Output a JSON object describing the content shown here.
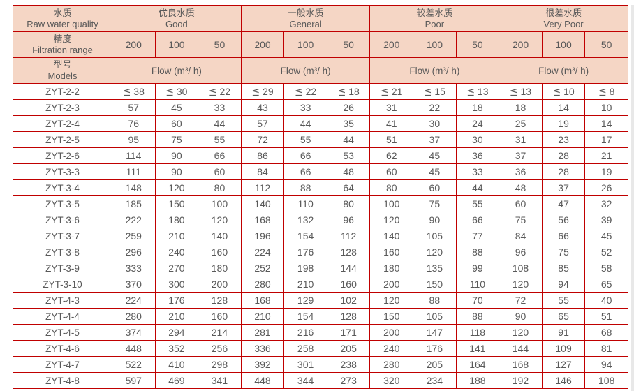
{
  "colors": {
    "border_red": "#c00000",
    "header_fill": "#f5d6c5",
    "text_gray": "#595959",
    "scrollbar_gray": "#e8e8e8"
  },
  "header": {
    "quality": {
      "zh": "水质",
      "en": "Raw water quality"
    },
    "groups": [
      {
        "zh": "优良水质",
        "en": "Good"
      },
      {
        "zh": "一般水质",
        "en": "General"
      },
      {
        "zh": "较差水质",
        "en": "Poor"
      },
      {
        "zh": "很差水质",
        "en": "Very Poor"
      }
    ],
    "filtration": {
      "zh": "精度",
      "en": "Filtration range"
    },
    "filtration_values": [
      "200",
      "100",
      "50",
      "200",
      "100",
      "50",
      "200",
      "100",
      "50",
      "200",
      "100",
      "50"
    ],
    "models": {
      "zh": "型号",
      "en": "Models"
    },
    "flow_label": "Flow (m³/ h)"
  },
  "table": {
    "rows": [
      {
        "model": "ZYT-2-2",
        "values": [
          "≦ 38",
          "≦ 30",
          "≦ 22",
          "≦ 29",
          "≦ 22",
          "≦ 18",
          "≦ 21",
          "≦ 15",
          "≦ 13",
          "≦ 13",
          "≦ 10",
          "≦ 8"
        ]
      },
      {
        "model": "ZYT-2-3",
        "values": [
          "57",
          "45",
          "33",
          "43",
          "33",
          "26",
          "31",
          "22",
          "18",
          "18",
          "14",
          "10"
        ]
      },
      {
        "model": "ZYT-2-4",
        "values": [
          "76",
          "60",
          "44",
          "57",
          "44",
          "35",
          "41",
          "30",
          "24",
          "25",
          "19",
          "14"
        ]
      },
      {
        "model": "ZYT-2-5",
        "values": [
          "95",
          "75",
          "55",
          "72",
          "55",
          "44",
          "51",
          "37",
          "30",
          "31",
          "23",
          "17"
        ]
      },
      {
        "model": "ZYT-2-6",
        "values": [
          "114",
          "90",
          "66",
          "86",
          "66",
          "53",
          "62",
          "45",
          "36",
          "37",
          "28",
          "21"
        ]
      },
      {
        "model": "ZYT-3-3",
        "values": [
          "111",
          "90",
          "60",
          "84",
          "66",
          "48",
          "60",
          "45",
          "33",
          "36",
          "28",
          "19"
        ]
      },
      {
        "model": "ZYT-3-4",
        "values": [
          "148",
          "120",
          "80",
          "112",
          "88",
          "64",
          "80",
          "60",
          "44",
          "48",
          "37",
          "26"
        ]
      },
      {
        "model": "ZYT-3-5",
        "values": [
          "185",
          "150",
          "100",
          "140",
          "110",
          "80",
          "100",
          "75",
          "55",
          "60",
          "47",
          "32"
        ]
      },
      {
        "model": "ZYT-3-6",
        "values": [
          "222",
          "180",
          "120",
          "168",
          "132",
          "96",
          "120",
          "90",
          "66",
          "75",
          "56",
          "39"
        ]
      },
      {
        "model": "ZYT-3-7",
        "values": [
          "259",
          "210",
          "140",
          "196",
          "154",
          "112",
          "140",
          "105",
          "77",
          "84",
          "66",
          "45"
        ]
      },
      {
        "model": "ZYT-3-8",
        "values": [
          "296",
          "240",
          "160",
          "224",
          "176",
          "128",
          "160",
          "120",
          "88",
          "96",
          "75",
          "52"
        ]
      },
      {
        "model": "ZYT-3-9",
        "values": [
          "333",
          "270",
          "180",
          "252",
          "198",
          "144",
          "180",
          "135",
          "99",
          "108",
          "85",
          "58"
        ]
      },
      {
        "model": "ZYT-3-10",
        "values": [
          "370",
          "300",
          "200",
          "280",
          "210",
          "160",
          "200",
          "150",
          "110",
          "120",
          "94",
          "65"
        ]
      },
      {
        "model": "ZYT-4-3",
        "values": [
          "224",
          "176",
          "128",
          "168",
          "129",
          "102",
          "120",
          "88",
          "70",
          "72",
          "55",
          "40"
        ]
      },
      {
        "model": "ZYT-4-4",
        "values": [
          "280",
          "210",
          "160",
          "210",
          "154",
          "128",
          "150",
          "105",
          "88",
          "90",
          "65",
          "51"
        ]
      },
      {
        "model": "ZYT-4-5",
        "values": [
          "374",
          "294",
          "214",
          "281",
          "216",
          "171",
          "200",
          "147",
          "118",
          "120",
          "91",
          "68"
        ]
      },
      {
        "model": "ZYT-4-6",
        "values": [
          "448",
          "352",
          "256",
          "336",
          "258",
          "205",
          "240",
          "176",
          "141",
          "144",
          "109",
          "81"
        ]
      },
      {
        "model": "ZYT-4-7",
        "values": [
          "522",
          "410",
          "298",
          "392",
          "301",
          "238",
          "280",
          "205",
          "164",
          "168",
          "127",
          "94"
        ]
      },
      {
        "model": "ZYT-4-8",
        "values": [
          "597",
          "469",
          "341",
          "448",
          "344",
          "273",
          "320",
          "234",
          "188",
          "192",
          "146",
          "108"
        ]
      }
    ]
  }
}
